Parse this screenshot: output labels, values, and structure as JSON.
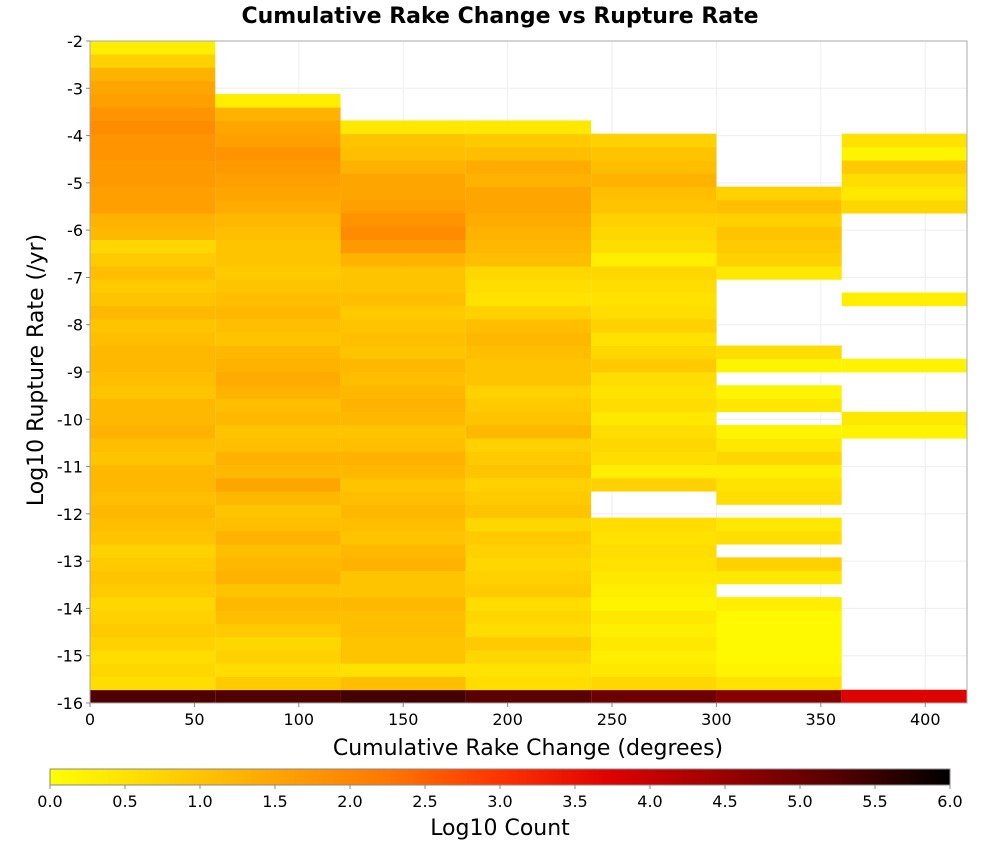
{
  "chart_data": {
    "type": "heatmap",
    "title": "Cumulative Rake Change vs Rupture Rate",
    "xlabel": "Cumulative Rake Change (degrees)",
    "ylabel": "Log10 Rupture Rate (/yr)",
    "xlim": [
      0,
      420
    ],
    "ylim": [
      -16,
      -2
    ],
    "x_ticks": [
      "0",
      "50",
      "100",
      "150",
      "200",
      "250",
      "300",
      "350",
      "400"
    ],
    "y_ticks": [
      "-2",
      "-3",
      "-4",
      "-5",
      "-6",
      "-7",
      "-8",
      "-9",
      "-10",
      "-11",
      "-12",
      "-13",
      "-14",
      "-15",
      "-16"
    ],
    "grid": true,
    "x_bin_width": 60,
    "y_bin_height": 0.28,
    "y_bin_start": -16,
    "colorbar": {
      "label": "Log10 Count",
      "range": [
        0,
        6
      ],
      "ticks": [
        "0.0",
        "0.5",
        "1.0",
        "1.5",
        "2.0",
        "2.5",
        "3.0",
        "3.5",
        "4.0",
        "4.5",
        "5.0",
        "5.5",
        "6.0"
      ],
      "colors": [
        "#ffff00",
        "#ffd400",
        "#ffa500",
        "#ff7700",
        "#ff3300",
        "#dd0000",
        "#990000",
        "#550000",
        "#000000"
      ],
      "placement": "bottom"
    },
    "columns": [
      {
        "x_start": 0,
        "values": [
          5.3,
          0.6,
          0.7,
          0.6,
          0.8,
          0.9,
          0.8,
          0.7,
          0.9,
          1.0,
          0.9,
          0.8,
          1.0,
          1.1,
          1.2,
          1.1,
          1.2,
          1.2,
          1.0,
          1.1,
          1.3,
          1.2,
          1.2,
          1.0,
          1.1,
          1.2,
          1.2,
          1.1,
          1.0,
          1.2,
          1.0,
          0.9,
          1.1,
          0.9,
          0.7,
          1.2,
          1.3,
          1.6,
          1.6,
          1.7,
          1.7,
          1.8,
          1.8,
          1.9,
          1.8,
          1.6,
          1.5,
          1.3,
          0.8,
          0.3
        ]
      },
      {
        "x_start": 60,
        "values": [
          5.3,
          0.9,
          0.6,
          0.8,
          0.7,
          0.9,
          1.1,
          1.2,
          1.0,
          1.3,
          1.2,
          1.1,
          1.3,
          1.1,
          1.0,
          1.2,
          1.5,
          1.2,
          1.3,
          1.1,
          1.0,
          1.2,
          1.1,
          1.3,
          1.4,
          1.3,
          1.2,
          1.0,
          1.1,
          1.2,
          1.1,
          1.0,
          0.9,
          1.0,
          1.0,
          1.1,
          1.2,
          1.4,
          1.5,
          1.6,
          1.7,
          1.8,
          1.6,
          1.5,
          1.3,
          0.3
        ]
      },
      {
        "x_start": 120,
        "values": [
          5.4,
          1.1,
          0.5,
          1.0,
          1.0,
          1.1,
          1.1,
          1.2,
          1.0,
          1.0,
          1.3,
          1.2,
          1.0,
          1.1,
          1.2,
          1.1,
          1.0,
          1.2,
          1.3,
          1.1,
          1.0,
          1.2,
          1.3,
          1.2,
          1.1,
          1.2,
          1.0,
          1.1,
          1.0,
          0.9,
          1.1,
          1.0,
          1.0,
          1.3,
          1.7,
          1.9,
          1.8,
          1.6,
          1.5,
          1.5,
          1.3,
          1.1,
          1.0,
          0.4
        ]
      },
      {
        "x_start": 180,
        "values": [
          5.2,
          0.6,
          0.5,
          0.7,
          0.9,
          0.6,
          0.7,
          0.6,
          0.9,
          0.8,
          0.7,
          0.8,
          0.9,
          0.7,
          1.0,
          0.9,
          0.8,
          1.0,
          0.9,
          0.8,
          1.2,
          1.0,
          0.9,
          0.8,
          1.0,
          1.0,
          1.1,
          1.2,
          1.1,
          0.8,
          0.5,
          0.6,
          0.7,
          1.1,
          1.2,
          1.3,
          1.4,
          1.5,
          1.5,
          1.3,
          1.4,
          1.1,
          0.9,
          0.4
        ]
      },
      {
        "x_start": 240,
        "values": [
          5.0,
          0.7,
          0.4,
          0.3,
          0.4,
          0.3,
          0.4,
          0.2,
          0.3,
          0.4,
          0.5,
          0.6,
          0.5,
          0.6,
          null,
          null,
          0.8,
          0.3,
          0.6,
          0.7,
          0.6,
          0.4,
          0.6,
          0.5,
          0.6,
          0.9,
          0.7,
          0.5,
          0.8,
          0.6,
          0.5,
          0.6,
          0.7,
          0.3,
          0.6,
          0.7,
          0.8,
          1.0,
          1.1,
          1.3,
          1.1,
          1.0,
          0.8
        ]
      },
      {
        "x_start": 300,
        "values": [
          4.7,
          0.5,
          0.2,
          0.1,
          0.1,
          0.1,
          0.1,
          0.3,
          null,
          0.4,
          0.8,
          null,
          0.6,
          0.4,
          null,
          0.6,
          0.5,
          0.3,
          0.7,
          0.4,
          0.2,
          null,
          0.4,
          0.2,
          null,
          0.2,
          0.6,
          null,
          null,
          null,
          null,
          null,
          0.4,
          0.8,
          0.9,
          1.0,
          0.8,
          1.1,
          0.8
        ]
      },
      {
        "x_start": 360,
        "values": [
          3.7,
          null,
          null,
          null,
          null,
          null,
          null,
          null,
          null,
          null,
          null,
          null,
          null,
          null,
          null,
          null,
          null,
          null,
          null,
          null,
          0.2,
          0.4,
          null,
          null,
          null,
          0.2,
          null,
          null,
          null,
          null,
          0.3,
          null,
          null,
          null,
          null,
          null,
          null,
          0.7,
          0.4,
          0.6,
          0.9,
          0.2,
          0.5
        ]
      }
    ]
  }
}
